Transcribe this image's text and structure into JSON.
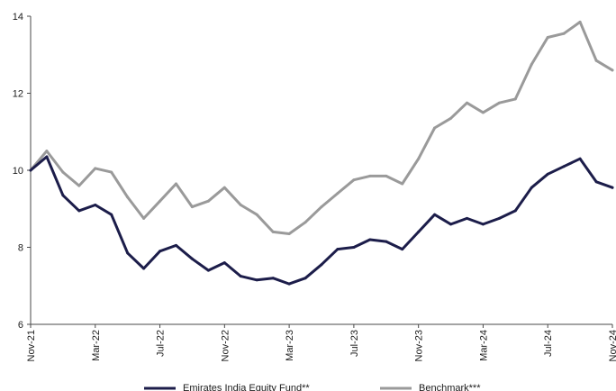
{
  "chart_data": {
    "type": "line",
    "title": "",
    "xlabel": "",
    "ylabel": "",
    "ylim": [
      6,
      14
    ],
    "yticks": [
      6,
      8,
      10,
      12,
      14
    ],
    "grid": false,
    "legend_position": "bottom",
    "x_tick_labels": [
      "Nov-21",
      "Mar-22",
      "Jul-22",
      "Nov-22",
      "Mar-23",
      "Jul-23",
      "Nov-23",
      "Mar-24",
      "Jul-24",
      "Nov-24"
    ],
    "x": [
      "Nov-21",
      "Dec-21",
      "Jan-22",
      "Feb-22",
      "Mar-22",
      "Apr-22",
      "May-22",
      "Jun-22",
      "Jul-22",
      "Aug-22",
      "Sep-22",
      "Oct-22",
      "Nov-22",
      "Dec-22",
      "Jan-23",
      "Feb-23",
      "Mar-23",
      "Apr-23",
      "May-23",
      "Jun-23",
      "Jul-23",
      "Aug-23",
      "Sep-23",
      "Oct-23",
      "Nov-23",
      "Dec-23",
      "Jan-24",
      "Feb-24",
      "Mar-24",
      "Apr-24",
      "May-24",
      "Jun-24",
      "Jul-24",
      "Aug-24",
      "Sep-24",
      "Oct-24",
      "Nov-24"
    ],
    "series": [
      {
        "name": "Emirates India Equity Fund**",
        "color": "#1c1d4a",
        "values": [
          10.0,
          10.35,
          9.35,
          8.95,
          9.1,
          8.85,
          7.85,
          7.45,
          7.9,
          8.05,
          7.7,
          7.4,
          7.6,
          7.25,
          7.15,
          7.2,
          7.05,
          7.2,
          7.55,
          7.95,
          8.0,
          8.2,
          8.15,
          7.95,
          8.4,
          8.85,
          8.6,
          8.75,
          8.6,
          8.75,
          8.95,
          9.55,
          9.9,
          10.1,
          10.3,
          9.7,
          9.55
        ]
      },
      {
        "name": "Benchmark***",
        "color": "#9a9a9a",
        "values": [
          10.0,
          10.5,
          9.95,
          9.6,
          10.05,
          9.95,
          9.3,
          8.75,
          9.2,
          9.65,
          9.05,
          9.2,
          9.55,
          9.1,
          8.85,
          8.4,
          8.35,
          8.65,
          9.05,
          9.4,
          9.75,
          9.85,
          9.85,
          9.65,
          10.3,
          11.1,
          11.35,
          11.75,
          11.5,
          11.75,
          11.85,
          12.75,
          13.45,
          13.55,
          13.85,
          12.85,
          12.6
        ]
      }
    ]
  }
}
